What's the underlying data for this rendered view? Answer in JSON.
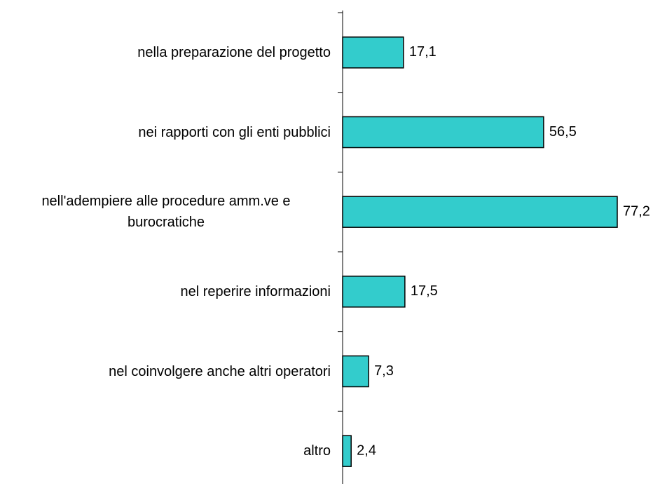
{
  "chart_data": {
    "type": "barh",
    "categories": [
      "nella preparazione del progetto",
      "nei rapporti con gli enti pubblici",
      "nell'adempiere alle procedure amm.ve e burocratiche",
      "nel reperire informazioni",
      "nel coinvolgere anche altri operatori",
      "altro"
    ],
    "values": [
      17.1,
      56.5,
      77.2,
      17.5,
      7.3,
      2.4
    ],
    "value_labels": [
      "17,1",
      "56,5",
      "77,2",
      "17,5",
      "7,3",
      "2,4"
    ],
    "color": "#33cccc"
  }
}
